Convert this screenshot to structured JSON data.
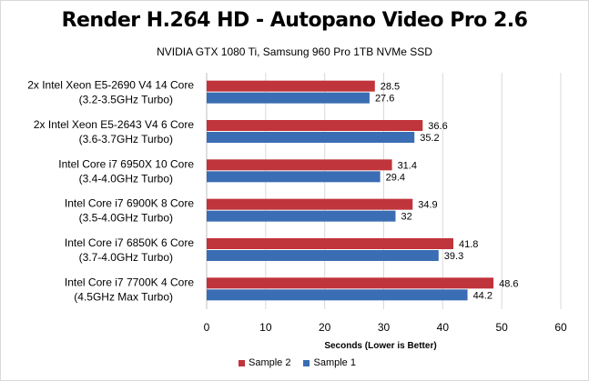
{
  "chart_data": {
    "type": "bar",
    "orientation": "horizontal",
    "title": "Render H.264 HD - Autopano Video Pro 2.6",
    "subtitle": "NVIDIA GTX 1080 Ti, Samsung 960 Pro 1TB NVMe SSD",
    "xlabel": "Seconds  (Lower is Better)",
    "xlim": [
      0,
      60
    ],
    "xticks": [
      "0",
      "10",
      "20",
      "30",
      "40",
      "50",
      "60"
    ],
    "grid": true,
    "legend_position": "bottom",
    "categories": [
      [
        "2x Intel Xeon E5-2690 V4 14 Core",
        "(3.2-3.5GHz Turbo)"
      ],
      [
        "2x Intel Xeon E5-2643 V4 6 Core",
        "(3.6-3.7GHz Turbo)"
      ],
      [
        "Intel Core i7 6950X 10 Core",
        "(3.4-4.0GHz Turbo)"
      ],
      [
        "Intel Core i7 6900K 8 Core",
        "(3.5-4.0GHz Turbo)"
      ],
      [
        "Intel Core i7 6850K 6 Core",
        "(3.7-4.0GHz Turbo)"
      ],
      [
        "Intel Core i7 7700K 4 Core",
        "(4.5GHz Max Turbo)"
      ]
    ],
    "series": [
      {
        "name": "Sample 2",
        "color": "#c0343b",
        "values": [
          28.5,
          36.6,
          31.4,
          34.9,
          41.8,
          48.6
        ],
        "labels": [
          "28.5",
          "36.6",
          "31.4",
          "34.9",
          "41.8",
          "48.6"
        ]
      },
      {
        "name": "Sample 1",
        "color": "#3a6db3",
        "values": [
          27.6,
          35.2,
          29.4,
          32,
          39.3,
          44.2
        ],
        "labels": [
          "27.6",
          "35.2",
          "29.4",
          "32",
          "39.3",
          "44.2"
        ]
      }
    ]
  }
}
